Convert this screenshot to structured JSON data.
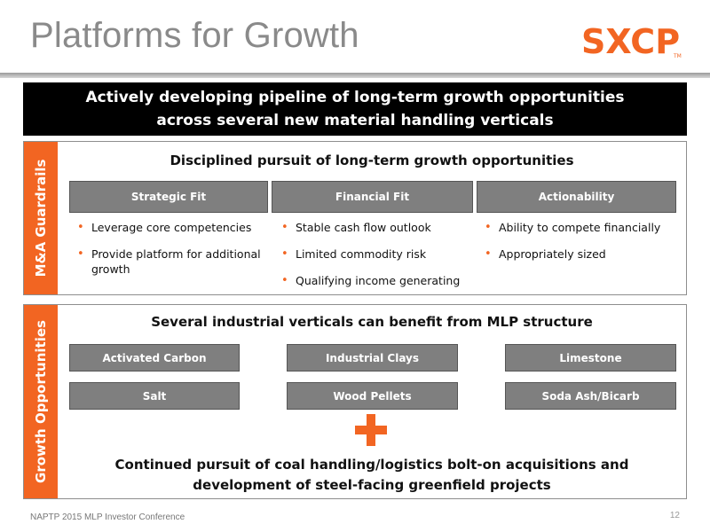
{
  "title": "Platforms for Growth",
  "logo": {
    "text": "SXCP",
    "tm": "TM",
    "brand_color": "#f26522"
  },
  "banner": {
    "line1": "Actively developing pipeline of long-term growth opportunities",
    "line2": "across several new material handling verticals"
  },
  "guardrails": {
    "side_label": "M&A Guardrails",
    "title": "Disciplined pursuit of long-term growth opportunities",
    "columns": [
      {
        "header": "Strategic Fit",
        "bullets": [
          "Leverage core competencies",
          "Provide platform for additional growth"
        ]
      },
      {
        "header": "Financial Fit",
        "bullets": [
          "Stable cash flow outlook",
          "Limited commodity risk",
          "Qualifying income generating"
        ]
      },
      {
        "header": "Actionability",
        "bullets": [
          "Ability to compete financially",
          "Appropriately sized"
        ]
      }
    ]
  },
  "growth": {
    "side_label": "Growth Opportunities",
    "title": "Several industrial verticals can benefit from MLP structure",
    "verticals": [
      "Activated Carbon",
      "Industrial Clays",
      "Limestone",
      "Salt",
      "Wood Pellets",
      "Soda Ash/Bicarb"
    ],
    "continued_line1": "Continued pursuit of coal handling/logistics bolt-on acquisitions and",
    "continued_line2": "development of steel-facing greenfield projects"
  },
  "colors": {
    "accent": "#f26522",
    "box_gray": "#7f7f7f",
    "title_gray": "#8a8a8a",
    "banner_bg": "#000000"
  },
  "footer": {
    "text": "NAPTP 2015 MLP Investor Conference",
    "page": "12"
  }
}
